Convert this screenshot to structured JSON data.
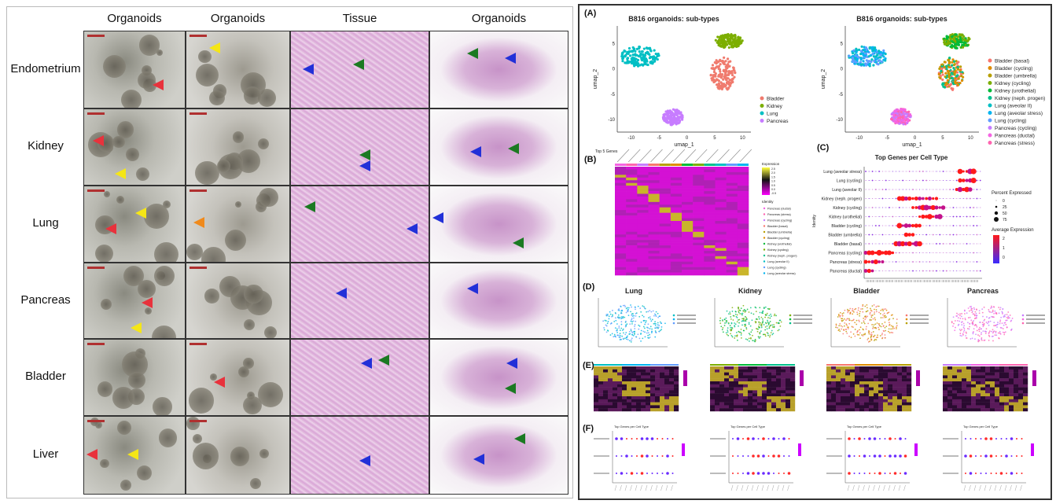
{
  "left": {
    "column_headers": [
      "Organoids",
      "Organoids",
      "Tissue",
      "Organoids"
    ],
    "row_labels": [
      "Endometrium",
      "Kidney",
      "Lung",
      "Pancreas",
      "Bladder",
      "Liver"
    ],
    "arrow_colors": {
      "red": "#e8323c",
      "yellow": "#f5e616",
      "blue": "#2230d8",
      "green": "#1b7a22",
      "orange": "#f08a1c"
    }
  },
  "right": {
    "panel_labels": {
      "a": "(A)",
      "b": "(B)",
      "c": "(C)",
      "d": "(D)",
      "e": "(E)",
      "f": "(F)"
    },
    "umap": {
      "title": "B816 organoids: sub-types",
      "xlabel": "umap_1",
      "ylabel": "umap_2",
      "xticks": [
        "-10",
        "-5",
        "0",
        "5",
        "10"
      ],
      "yticks": [
        "5",
        "0",
        "-5",
        "-10"
      ],
      "legend_tissue": [
        {
          "name": "Bladder",
          "color": "#f07b6e"
        },
        {
          "name": "Kidney",
          "color": "#7cae00"
        },
        {
          "name": "Lung",
          "color": "#00bfc4"
        },
        {
          "name": "Pancreas",
          "color": "#c77cff"
        }
      ],
      "legend_subtypes": [
        {
          "name": "Bladder (basal)",
          "color": "#f8766d"
        },
        {
          "name": "Bladder (cycling)",
          "color": "#de8c00"
        },
        {
          "name": "Bladder (umbrella)",
          "color": "#b79f00"
        },
        {
          "name": "Kidney (cycling)",
          "color": "#7cae00"
        },
        {
          "name": "Kidney (urothelial)",
          "color": "#00ba38"
        },
        {
          "name": "Kidney (neph. progen)",
          "color": "#00c08b"
        },
        {
          "name": "Lung (aveolar II)",
          "color": "#00bfc4"
        },
        {
          "name": "Lung (aveolar stress)",
          "color": "#00b4f0"
        },
        {
          "name": "Lung (cycling)",
          "color": "#619cff"
        },
        {
          "name": "Pancreas (cycling)",
          "color": "#c77cff"
        },
        {
          "name": "Pancreas (ductal)",
          "color": "#f564e3"
        },
        {
          "name": "Pancreas (stress)",
          "color": "#ff64b0"
        }
      ]
    },
    "heatmap": {
      "caption": "Top 5 Genes",
      "scale_title": "Expression",
      "scale_ticks": [
        "2.5",
        "2.0",
        "1.5",
        "1.0",
        "0.5",
        "0.0",
        "-0.5"
      ],
      "identity_title": "Identity",
      "identities": [
        "Pancreas (ductal)",
        "Pancreas (stress)",
        "Pancreas (cycling)",
        "Bladder (basal)",
        "Bladder (umbrella)",
        "Bladder (cycling)",
        "Kidney (urothelial)",
        "Kidney (cycling)",
        "Kidney (neph. progen)",
        "Lung (aveolar II)",
        "Lung (cycling)",
        "Lung (aveolar stress)"
      ]
    },
    "dotplot": {
      "title": "Top Genes per Cell Type",
      "ylabel": "Identity",
      "rows": [
        "Lung (aveolar stress)",
        "Lung (cycling)",
        "Lung (aveolar II)",
        "Kidney (neph. progen)",
        "Kidney (cycling)",
        "Kidney (urothelial)",
        "Bladder (cycling)",
        "Bladder (umbrella)",
        "Bladder (basal)",
        "Pancreas (cycling)",
        "Pancreas (stress)",
        "Pancreas (ductal)"
      ],
      "size_title": "Percent Expressed",
      "size_ticks": [
        "0",
        "25",
        "50",
        "75"
      ],
      "color_title": "Average Expression",
      "color_ticks": [
        "2",
        "1",
        "0"
      ],
      "colors": {
        "high": "#ff1a1a",
        "low": "#3a2bff"
      }
    },
    "subsets": [
      {
        "title": "Lung"
      },
      {
        "title": "Kidney"
      },
      {
        "title": "Bladder"
      },
      {
        "title": "Pancreas"
      }
    ],
    "small_dotplot_title": "Top Genes per Cell Type"
  }
}
